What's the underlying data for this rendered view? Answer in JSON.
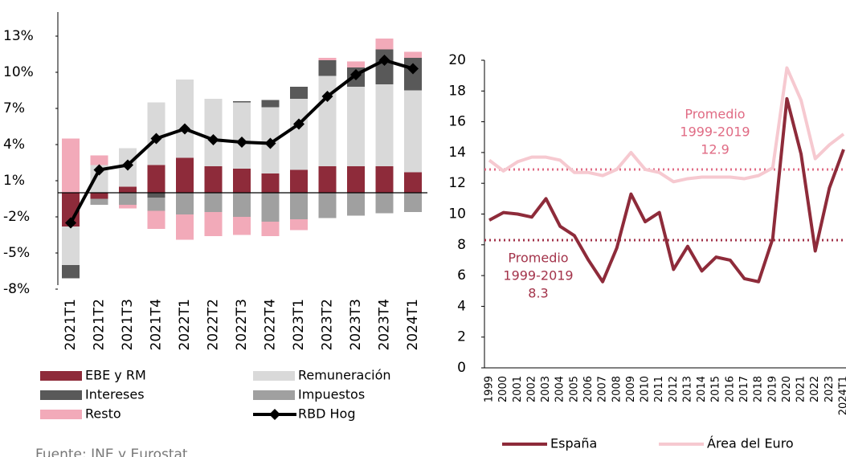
{
  "chart_data": [
    {
      "type": "bar",
      "stacked": true,
      "categories": [
        "2021T1",
        "2021T2",
        "2021T3",
        "2021T4",
        "2022T1",
        "2022T2",
        "2022T3",
        "2022T4",
        "2023T1",
        "2023T2",
        "2023T3",
        "2023T4",
        "2024T1"
      ],
      "ylim": [
        -8,
        15
      ],
      "yticks": [
        {
          "value": -8,
          "label": "-8%"
        },
        {
          "value": -5,
          "label": "-5%"
        },
        {
          "value": -2,
          "label": "-2%"
        },
        {
          "value": 1,
          "label": "1%"
        },
        {
          "value": 4,
          "label": "4%"
        },
        {
          "value": 7,
          "label": "7%"
        },
        {
          "value": 10,
          "label": "10%"
        },
        {
          "value": 13,
          "label": "13%"
        }
      ],
      "series": [
        {
          "name": "EBE y RM",
          "color": "#8e2b3a",
          "values": [
            -2.8,
            -0.5,
            0.5,
            2.3,
            2.9,
            2.2,
            2.0,
            1.6,
            1.9,
            2.2,
            2.2,
            2.2,
            1.7
          ]
        },
        {
          "name": "Remuneración",
          "color": "#d9d9d9",
          "values": [
            -3.2,
            2.3,
            3.2,
            5.2,
            6.5,
            5.6,
            5.5,
            5.5,
            5.9,
            7.5,
            6.6,
            6.8,
            6.8
          ]
        },
        {
          "name": "Intereses",
          "color": "#595959",
          "values": [
            -1.1,
            0,
            0,
            -0.4,
            0,
            0,
            0.1,
            0.6,
            1.0,
            1.3,
            1.6,
            2.9,
            2.7
          ]
        },
        {
          "name": "Impuestos",
          "color": "#a0a0a0",
          "values": [
            0,
            -0.5,
            -1.0,
            -1.1,
            -1.8,
            -1.6,
            -2.0,
            -2.4,
            -2.2,
            -2.1,
            -1.9,
            -1.7,
            -1.6
          ]
        },
        {
          "name": "Resto",
          "color": "#f2aab9",
          "values": [
            4.5,
            0.8,
            -0.3,
            -1.5,
            -2.1,
            -2.0,
            -1.5,
            -1.2,
            -0.9,
            0.2,
            0.5,
            0.9,
            0.5
          ]
        },
        {
          "name": "RBD Hog",
          "type": "line",
          "color": "#000000",
          "values": [
            -2.5,
            1.9,
            2.3,
            4.5,
            5.3,
            4.4,
            4.2,
            4.1,
            5.7,
            8.0,
            9.8,
            11.0,
            10.3
          ]
        }
      ],
      "source": "Fuente: INE y Eurostat"
    },
    {
      "type": "line",
      "categories": [
        "1999",
        "2000",
        "2001",
        "2002",
        "2003",
        "2004",
        "2005",
        "2006",
        "2007",
        "2008",
        "2009",
        "2010",
        "2011",
        "2012",
        "2013",
        "2014",
        "2015",
        "2016",
        "2017",
        "2018",
        "2019",
        "2020",
        "2021",
        "2022",
        "2023",
        "2024T1"
      ],
      "ylim": [
        0,
        20
      ],
      "yticks": [
        0,
        2,
        4,
        6,
        8,
        10,
        12,
        14,
        16,
        18,
        20
      ],
      "series": [
        {
          "name": "España",
          "color": "#8e2b3a",
          "values": [
            9.6,
            10.1,
            10.0,
            9.8,
            11.0,
            9.2,
            8.6,
            7.0,
            5.6,
            7.8,
            11.3,
            9.5,
            10.1,
            6.4,
            7.9,
            6.3,
            7.2,
            7.0,
            5.8,
            5.6,
            8.4,
            17.5,
            13.9,
            7.6,
            11.7,
            14.2
          ]
        },
        {
          "name": "Área del Euro",
          "color": "#f6c9d0",
          "values": [
            13.5,
            12.8,
            13.4,
            13.7,
            13.7,
            13.5,
            12.7,
            12.7,
            12.5,
            12.9,
            14.0,
            12.9,
            12.7,
            12.1,
            12.3,
            12.4,
            12.4,
            12.4,
            12.3,
            12.5,
            13.0,
            19.5,
            17.4,
            13.6,
            14.5,
            15.2
          ]
        }
      ],
      "annotations": [
        {
          "lines": [
            "Promedio",
            "1999-2019"
          ],
          "value": 12.9,
          "color": "#e06b84"
        },
        {
          "lines": [
            "Promedio",
            "1999-2019"
          ],
          "value": 8.3,
          "color": "#a3334a"
        }
      ]
    }
  ]
}
